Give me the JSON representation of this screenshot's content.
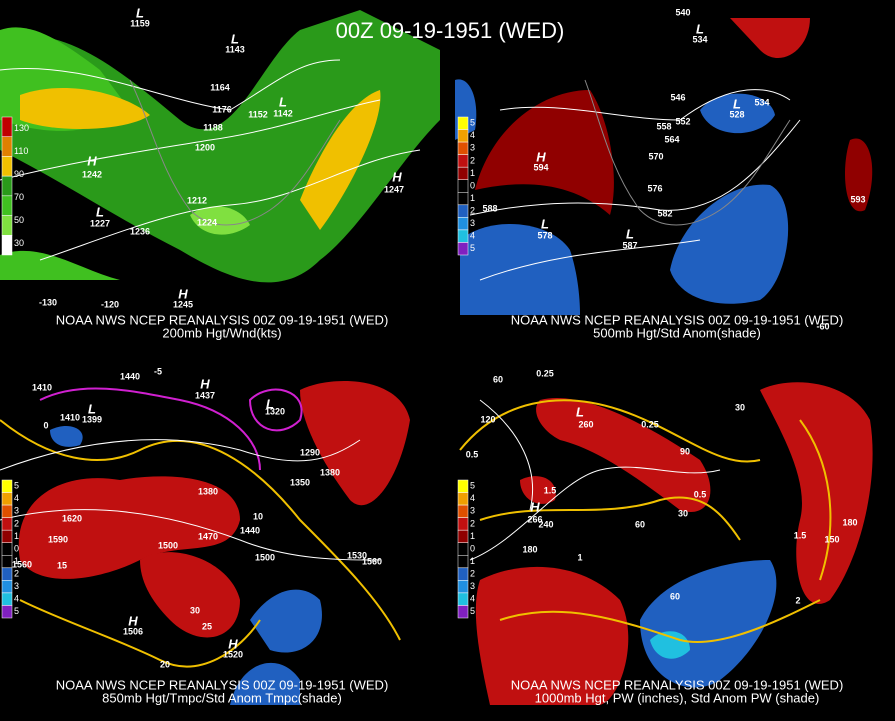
{
  "title": "00Z 09-19-1951 (WED)",
  "panels": [
    {
      "caption": [
        "NOAA NWS NCEP REANALYSIS 00Z 09-19-1951 (WED)",
        "200mb Hgt/Wnd(kts)"
      ],
      "colorbar": [
        "130",
        "110",
        "90",
        "70",
        "50",
        "30"
      ],
      "colors": [
        "#c00000",
        "#e08000",
        "#f0c000",
        "#2a9a1a",
        "#40c020",
        "#80e040",
        "#ffffff"
      ],
      "labels": [
        "H",
        "1242",
        "L",
        "1227",
        "1164",
        "1176",
        "1188",
        "1200",
        "1212",
        "1224",
        "1236",
        "1152",
        "L",
        "1142",
        "H",
        "1247",
        "H",
        "1245",
        "L",
        "1159",
        "L",
        "1143",
        "-130",
        "-120"
      ]
    },
    {
      "caption": [
        "NOAA NWS NCEP REANALYSIS 00Z 09-19-1951 (WED)",
        "500mb Hgt/Std Anom(shade)"
      ],
      "colorbar": [
        "5",
        "4",
        "3",
        "2",
        "1",
        "0",
        "1",
        "2",
        "3",
        "4",
        "5"
      ],
      "colors": [
        "#ffff00",
        "#f0a000",
        "#e05000",
        "#c01010",
        "#900000",
        "#000000",
        "#000000",
        "#2060c0",
        "#2090e0",
        "#20c0e0",
        "#8020c0"
      ],
      "labels": [
        "H",
        "594",
        "L",
        "578",
        "L",
        "587",
        "L",
        "528",
        "546",
        "558",
        "552",
        "564",
        "570",
        "576",
        "582",
        "588",
        "534",
        "540",
        "L",
        "534",
        "593",
        "-60"
      ]
    },
    {
      "caption": [
        "NOAA NWS NCEP REANALYSIS 00Z 09-19-1951 (WED)",
        "850mb Hgt/Tmpc/Std Anom Tmpc(shade)"
      ],
      "colorbar": [
        "5",
        "4",
        "3",
        "2",
        "1",
        "0",
        "1",
        "2",
        "3",
        "4",
        "5"
      ],
      "colors": [
        "#ffff00",
        "#f0a000",
        "#e05000",
        "#c01010",
        "#900000",
        "#000000",
        "#000000",
        "#2060c0",
        "#2090e0",
        "#20c0e0",
        "#8020c0"
      ],
      "labels": [
        "1410",
        "1410",
        "L",
        "1399",
        "1440",
        "H",
        "1437",
        "L",
        "1320",
        "1290",
        "1380",
        "1350",
        "1380",
        "1620",
        "1590",
        "1560",
        "1500",
        "1470",
        "1440",
        "1500",
        "1530",
        "1560",
        "10",
        "15",
        "20",
        "25",
        "30",
        "H",
        "1506",
        "H",
        "1520",
        "-5",
        "0"
      ]
    },
    {
      "caption": [
        "NOAA NWS NCEP REANALYSIS 00Z 09-19-1951 (WED)",
        "1000mb Hgt, PW (inches), Std Anom PW (shade)"
      ],
      "colorbar": [
        "5",
        "4",
        "3",
        "2",
        "1",
        "0",
        "1",
        "2",
        "3",
        "4",
        "5"
      ],
      "colors": [
        "#ffff00",
        "#f0a000",
        "#e05000",
        "#c01010",
        "#900000",
        "#000000",
        "#000000",
        "#2060c0",
        "#2090e0",
        "#20c0e0",
        "#8020c0"
      ],
      "labels": [
        "0.25",
        "0.5",
        "1.5",
        "1",
        "2",
        "1.5",
        "0.5",
        "0.25",
        "30",
        "60",
        "120",
        "90",
        "30",
        "60",
        "240",
        "180",
        "180",
        "150",
        "60",
        "L",
        "260",
        "H",
        "266"
      ]
    }
  ]
}
